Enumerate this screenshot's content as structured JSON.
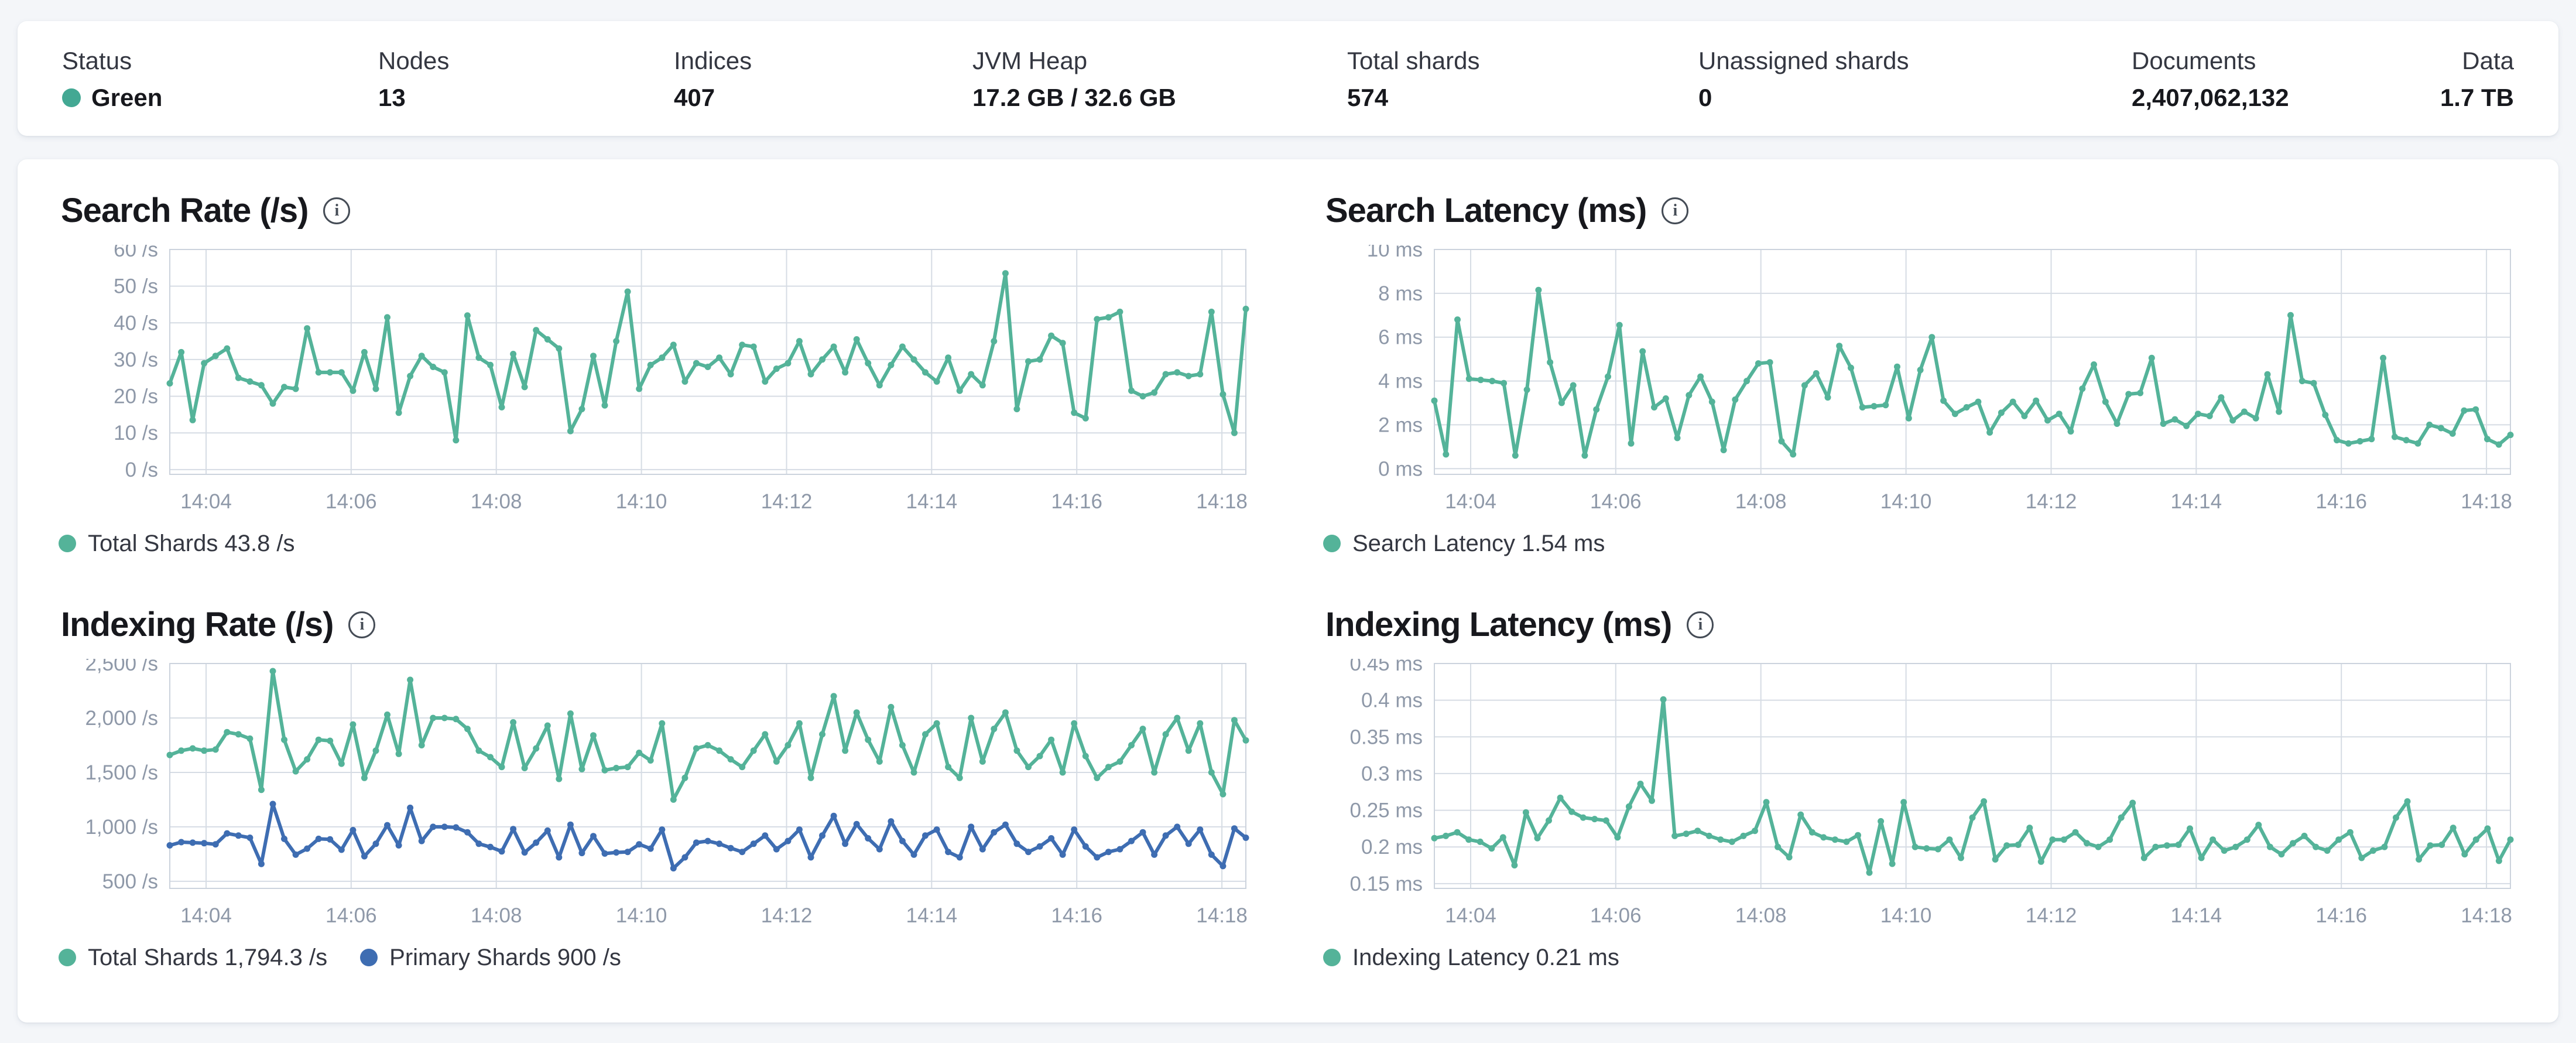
{
  "stats_bar": {
    "status_dot_color": "#43a893",
    "items": [
      {
        "label": "Status",
        "value": "Green"
      },
      {
        "label": "Nodes",
        "value": "13"
      },
      {
        "label": "Indices",
        "value": "407"
      },
      {
        "label": "JVM Heap",
        "value": "17.2 GB / 32.6 GB"
      },
      {
        "label": "Total shards",
        "value": "574"
      },
      {
        "label": "Unassigned shards",
        "value": "0"
      },
      {
        "label": "Documents",
        "value": "2,407,062,132"
      },
      {
        "label": "Data",
        "value": "1.7 TB"
      }
    ]
  },
  "chart_data": [
    {
      "type": "line",
      "title": "Search Rate (/s)",
      "ylabel": "/s",
      "ylim": [
        0,
        60
      ],
      "grid": true,
      "legend_position": "bottom",
      "x_start": 3.5,
      "x_end": 18.33,
      "x_tick_values": [
        4,
        6,
        8,
        10,
        12,
        14,
        16,
        18
      ],
      "x_ticks": [
        "14:04",
        "14:06",
        "14:08",
        "14:10",
        "14:12",
        "14:14",
        "14:16",
        "14:18"
      ],
      "y_ticks": [
        {
          "v": 0,
          "label": "0 /s"
        },
        {
          "v": 10,
          "label": "10 /s"
        },
        {
          "v": 20,
          "label": "20 /s"
        },
        {
          "v": 30,
          "label": "30 /s"
        },
        {
          "v": 40,
          "label": "40 /s"
        },
        {
          "v": 50,
          "label": "50 /s"
        },
        {
          "v": 60,
          "label": "60 /s"
        }
      ],
      "series": [
        {
          "name": "Total Shards",
          "legend_label": "Total Shards 43.8 /s",
          "current_value": "43.8 /s",
          "color": "#54b399",
          "values": [
            23.5,
            32,
            13.5,
            29,
            31,
            33,
            25,
            24,
            23,
            18,
            22.5,
            22,
            38.5,
            26.5,
            26.5,
            26.5,
            21.5,
            32,
            22,
            41.5,
            15.5,
            25.5,
            31,
            28,
            26.5,
            8,
            42,
            30.5,
            28.5,
            17,
            31.5,
            22.5,
            38,
            35.5,
            33,
            10.5,
            16.5,
            31,
            17.5,
            35,
            48.5,
            22,
            28.5,
            30.5,
            34,
            24,
            29,
            28,
            30.5,
            26,
            34,
            33.5,
            24,
            27.5,
            29,
            35,
            26,
            30,
            33.5,
            26.5,
            35.5,
            29,
            23,
            28.5,
            33.5,
            30,
            26.5,
            24,
            30.5,
            21.5,
            26,
            23,
            35,
            53.5,
            16.5,
            29.5,
            30,
            36.5,
            34.5,
            15.5,
            14,
            41,
            41.5,
            43,
            21.5,
            20,
            21,
            26,
            26.5,
            25.5,
            26,
            43,
            20.5,
            10,
            43.8
          ]
        }
      ]
    },
    {
      "type": "line",
      "title": "Search Latency (ms)",
      "ylabel": "ms",
      "ylim": [
        0,
        10
      ],
      "grid": true,
      "legend_position": "bottom",
      "x_start": 3.5,
      "x_end": 18.33,
      "x_tick_values": [
        4,
        6,
        8,
        10,
        12,
        14,
        16,
        18
      ],
      "x_ticks": [
        "14:04",
        "14:06",
        "14:08",
        "14:10",
        "14:12",
        "14:14",
        "14:16",
        "14:18"
      ],
      "y_ticks": [
        {
          "v": 0,
          "label": "0 ms"
        },
        {
          "v": 2,
          "label": "2 ms"
        },
        {
          "v": 4,
          "label": "4 ms"
        },
        {
          "v": 6,
          "label": "6 ms"
        },
        {
          "v": 8,
          "label": "8 ms"
        },
        {
          "v": 10,
          "label": "10 ms"
        }
      ],
      "series": [
        {
          "name": "Search Latency",
          "legend_label": "Search Latency 1.54 ms",
          "current_value": "1.54 ms",
          "color": "#54b399",
          "values": [
            3.1,
            0.65,
            6.8,
            4.1,
            4.05,
            4.0,
            3.9,
            0.6,
            3.6,
            8.15,
            4.85,
            3.0,
            3.8,
            0.6,
            2.7,
            4.2,
            6.55,
            1.15,
            5.35,
            2.8,
            3.2,
            1.4,
            3.35,
            4.2,
            3.05,
            0.85,
            3.15,
            4.0,
            4.8,
            4.85,
            1.25,
            0.65,
            3.8,
            4.35,
            3.25,
            5.6,
            4.6,
            2.8,
            2.85,
            2.9,
            4.65,
            2.3,
            4.5,
            6.0,
            3.1,
            2.5,
            2.8,
            3.05,
            1.65,
            2.55,
            3.05,
            2.4,
            3.1,
            2.2,
            2.5,
            1.7,
            3.65,
            4.75,
            3.05,
            2.05,
            3.4,
            3.45,
            5.05,
            2.05,
            2.25,
            1.95,
            2.5,
            2.4,
            3.25,
            2.2,
            2.6,
            2.3,
            4.3,
            2.6,
            7.0,
            4.0,
            3.9,
            2.45,
            1.3,
            1.15,
            1.25,
            1.35,
            5.05,
            1.45,
            1.3,
            1.15,
            2.0,
            1.85,
            1.6,
            2.65,
            2.7,
            1.35,
            1.1,
            1.54
          ]
        }
      ]
    },
    {
      "type": "line",
      "title": "Indexing Rate (/s)",
      "ylabel": "/s",
      "ylim": [
        500,
        2500
      ],
      "grid": true,
      "legend_position": "bottom",
      "x_start": 3.5,
      "x_end": 18.33,
      "x_tick_values": [
        4,
        6,
        8,
        10,
        12,
        14,
        16,
        18
      ],
      "x_ticks": [
        "14:04",
        "14:06",
        "14:08",
        "14:10",
        "14:12",
        "14:14",
        "14:16",
        "14:18"
      ],
      "y_ticks": [
        {
          "v": 500,
          "label": "500 /s"
        },
        {
          "v": 1000,
          "label": "1,000 /s"
        },
        {
          "v": 1500,
          "label": "1,500 /s"
        },
        {
          "v": 2000,
          "label": "2,000 /s"
        },
        {
          "v": 2500,
          "label": "2,500 /s"
        }
      ],
      "series": [
        {
          "name": "Total Shards",
          "legend_label": "Total Shards 1,794.3 /s",
          "current_value": "1,794.3 /s",
          "color": "#54b399",
          "values": [
            1660,
            1700,
            1720,
            1700,
            1710,
            1870,
            1850,
            1810,
            1340,
            2430,
            1800,
            1510,
            1620,
            1800,
            1790,
            1580,
            1940,
            1450,
            1700,
            2030,
            1670,
            2350,
            1750,
            2000,
            2000,
            1990,
            1900,
            1700,
            1640,
            1550,
            1960,
            1540,
            1720,
            1930,
            1440,
            2040,
            1530,
            1840,
            1520,
            1540,
            1550,
            1680,
            1610,
            1950,
            1250,
            1450,
            1720,
            1750,
            1700,
            1620,
            1550,
            1700,
            1850,
            1600,
            1750,
            1950,
            1450,
            1850,
            2200,
            1700,
            2050,
            1800,
            1600,
            2100,
            1750,
            1500,
            1850,
            1950,
            1550,
            1450,
            2000,
            1600,
            1900,
            2050,
            1700,
            1550,
            1650,
            1800,
            1500,
            1950,
            1650,
            1450,
            1550,
            1600,
            1750,
            1900,
            1500,
            1850,
            2000,
            1700,
            1950,
            1500,
            1300,
            1980,
            1794.3
          ]
        },
        {
          "name": "Primary Shards",
          "legend_label": "Primary Shards 900 /s",
          "current_value": "900 /s",
          "color": "#3e6db2",
          "values": [
            830,
            860,
            855,
            850,
            840,
            940,
            920,
            900,
            660,
            1210,
            890,
            745,
            800,
            890,
            885,
            790,
            970,
            730,
            845,
            1015,
            830,
            1175,
            870,
            1000,
            1000,
            995,
            950,
            845,
            815,
            775,
            980,
            765,
            855,
            965,
            720,
            1020,
            760,
            915,
            755,
            765,
            770,
            840,
            800,
            975,
            620,
            720,
            855,
            870,
            845,
            805,
            770,
            845,
            920,
            795,
            870,
            975,
            720,
            920,
            1100,
            845,
            1025,
            895,
            795,
            1050,
            870,
            745,
            920,
            975,
            770,
            720,
            1000,
            795,
            950,
            1020,
            845,
            770,
            820,
            895,
            745,
            975,
            820,
            720,
            770,
            795,
            870,
            950,
            745,
            920,
            1000,
            845,
            975,
            745,
            640,
            985,
            900
          ]
        }
      ]
    },
    {
      "type": "line",
      "title": "Indexing Latency (ms)",
      "ylabel": "ms",
      "ylim": [
        0.15,
        0.45
      ],
      "grid": true,
      "legend_position": "bottom",
      "x_start": 3.5,
      "x_end": 18.33,
      "x_tick_values": [
        4,
        6,
        8,
        10,
        12,
        14,
        16,
        18
      ],
      "x_ticks": [
        "14:04",
        "14:06",
        "14:08",
        "14:10",
        "14:12",
        "14:14",
        "14:16",
        "14:18"
      ],
      "y_ticks": [
        {
          "v": 0.15,
          "label": "0.15 ms"
        },
        {
          "v": 0.2,
          "label": "0.2 ms"
        },
        {
          "v": 0.25,
          "label": "0.25 ms"
        },
        {
          "v": 0.3,
          "label": "0.3 ms"
        },
        {
          "v": 0.35,
          "label": "0.35 ms"
        },
        {
          "v": 0.4,
          "label": "0.4 ms"
        },
        {
          "v": 0.45,
          "label": "0.45 ms"
        }
      ],
      "series": [
        {
          "name": "Indexing Latency",
          "legend_label": "Indexing Latency 0.21 ms",
          "current_value": "0.21 ms",
          "color": "#54b399",
          "values": [
            0.212,
            0.215,
            0.22,
            0.21,
            0.207,
            0.198,
            0.213,
            0.175,
            0.247,
            0.212,
            0.236,
            0.267,
            0.248,
            0.24,
            0.238,
            0.236,
            0.213,
            0.255,
            0.286,
            0.263,
            0.401,
            0.215,
            0.218,
            0.222,
            0.215,
            0.21,
            0.207,
            0.215,
            0.222,
            0.261,
            0.2,
            0.186,
            0.244,
            0.22,
            0.213,
            0.21,
            0.207,
            0.216,
            0.165,
            0.235,
            0.177,
            0.261,
            0.2,
            0.198,
            0.197,
            0.21,
            0.185,
            0.24,
            0.262,
            0.183,
            0.202,
            0.203,
            0.226,
            0.18,
            0.21,
            0.21,
            0.22,
            0.205,
            0.2,
            0.21,
            0.24,
            0.26,
            0.185,
            0.2,
            0.202,
            0.203,
            0.225,
            0.185,
            0.21,
            0.195,
            0.2,
            0.21,
            0.23,
            0.2,
            0.19,
            0.205,
            0.215,
            0.2,
            0.195,
            0.21,
            0.22,
            0.185,
            0.195,
            0.2,
            0.24,
            0.262,
            0.183,
            0.202,
            0.203,
            0.226,
            0.19,
            0.21,
            0.225,
            0.181,
            0.21
          ]
        }
      ]
    }
  ]
}
